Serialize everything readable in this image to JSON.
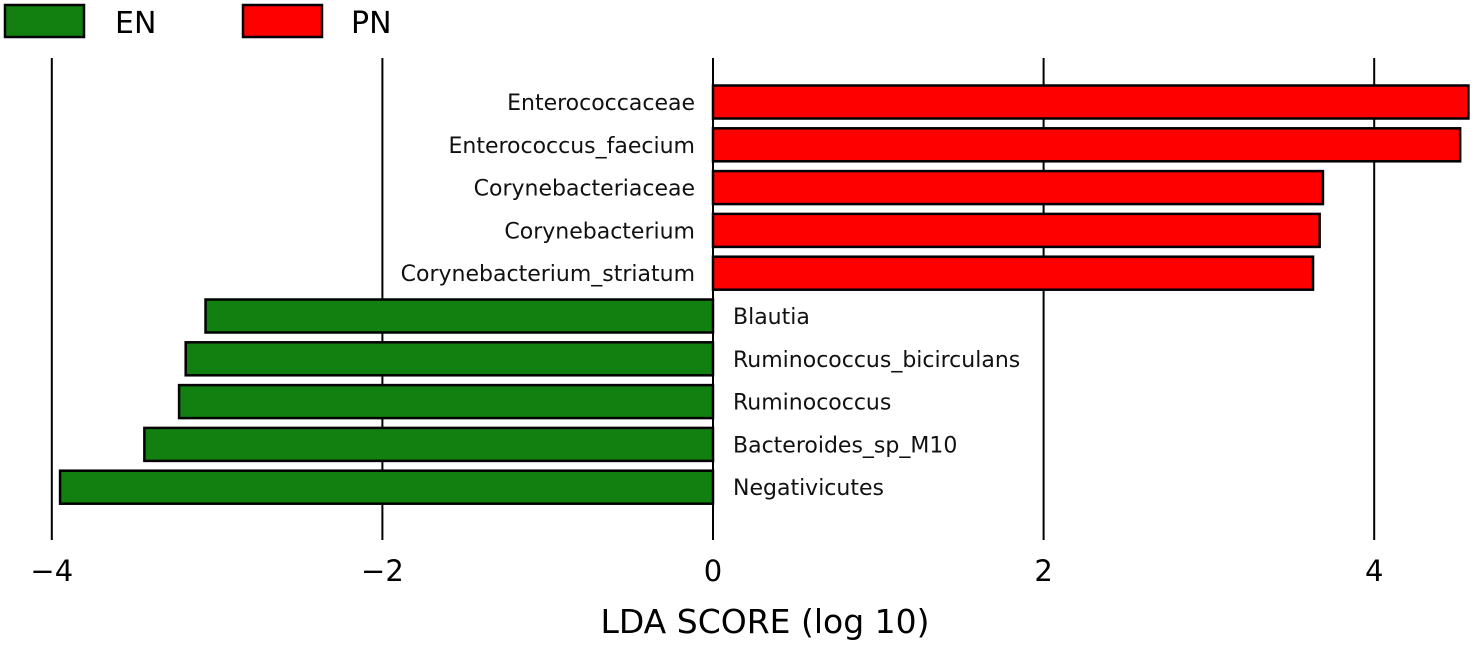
{
  "chart_data": {
    "type": "bar",
    "orientation": "horizontal",
    "title": "",
    "xlabel": "LDA SCORE (log 10)",
    "ylabel": "",
    "xlim": [
      -4.0,
      4.6
    ],
    "xticks": [
      -4,
      -2,
      0,
      2,
      4
    ],
    "xtick_labels": [
      "−4",
      "−2",
      "0",
      "2",
      "4"
    ],
    "grid": "vertical lines at ticks",
    "legend_position": "top-left",
    "legend": [
      {
        "name": "EN",
        "color": "#118011"
      },
      {
        "name": "PN",
        "color": "#ff0000"
      }
    ],
    "categories": [
      "Enterococcaceae",
      "Enterococcus_faecium",
      "Corynebacteriaceae",
      "Corynebacterium",
      "Corynebacterium_striatum",
      "Blautia",
      "Ruminococcus_bicirculans",
      "Ruminococcus",
      "Bacteroides_sp_M10",
      "Negativicutes"
    ],
    "values": [
      4.57,
      4.52,
      3.69,
      3.67,
      3.63,
      -3.07,
      -3.19,
      -3.23,
      -3.44,
      -3.95
    ],
    "groups": [
      "PN",
      "PN",
      "PN",
      "PN",
      "PN",
      "EN",
      "EN",
      "EN",
      "EN",
      "EN"
    ]
  }
}
